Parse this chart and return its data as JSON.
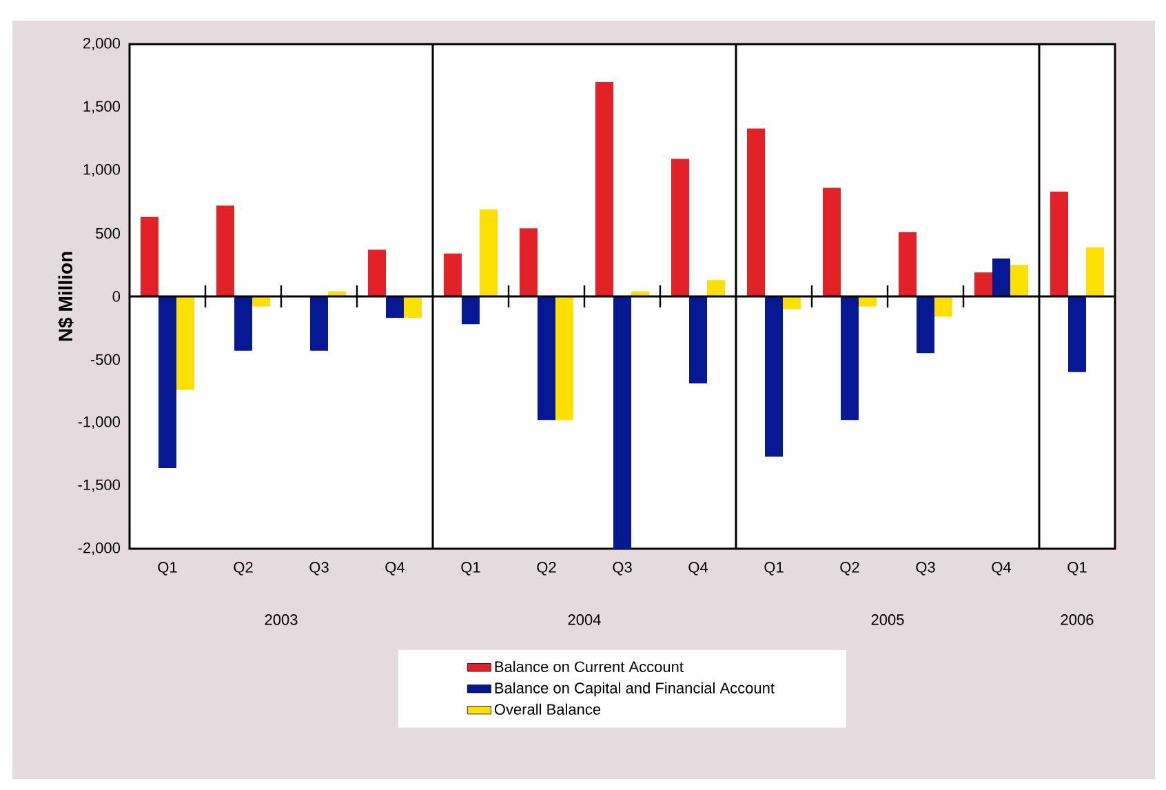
{
  "chart_data": {
    "type": "bar",
    "ylabel": "N$ Million",
    "categories": [
      "Q1",
      "Q2",
      "Q3",
      "Q4",
      "Q1",
      "Q2",
      "Q3",
      "Q4",
      "Q1",
      "Q2",
      "Q3",
      "Q4",
      "Q1"
    ],
    "series": [
      {
        "name": "Balance on Current Account",
        "color": "#e32227",
        "values": [
          630,
          720,
          null,
          370,
          340,
          540,
          1700,
          1090,
          1330,
          860,
          510,
          190,
          830
        ]
      },
      {
        "name": "Balance on Capital and Financial Account",
        "color": "#061894",
        "values": [
          -1360,
          -430,
          -430,
          -170,
          -220,
          -980,
          -2000,
          -690,
          -1270,
          -980,
          -450,
          300,
          -600
        ]
      },
      {
        "name": "Overall Balance",
        "color": "#fde000",
        "values": [
          -740,
          -80,
          40,
          -170,
          690,
          -980,
          40,
          130,
          -100,
          -80,
          -160,
          250,
          390
        ]
      }
    ],
    "ylim": [
      -2000,
      2000
    ],
    "yticks": [
      {
        "value": -2000,
        "label": "-2,000"
      },
      {
        "value": -1500,
        "label": "-1,500"
      },
      {
        "value": -1000,
        "label": "-1,000"
      },
      -500,
      0,
      500,
      {
        "value": 1000,
        "label": "1,000"
      },
      {
        "value": 1500,
        "label": "1,500"
      },
      {
        "value": 2000,
        "label": "2,000"
      }
    ],
    "annotations": [
      "2003",
      "2004",
      "2005",
      "2006"
    ],
    "ref_lines": [
      {
        "axis": "y",
        "value": 0,
        "color": "#000000"
      }
    ],
    "legend": "bottom",
    "grid": false
  }
}
